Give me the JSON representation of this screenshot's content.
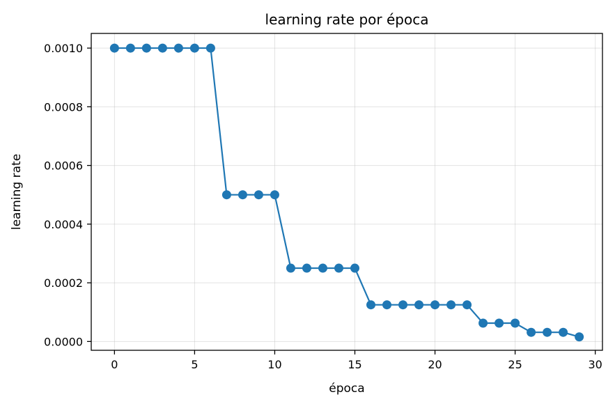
{
  "chart_data": {
    "type": "line",
    "title": "learning rate por época",
    "xlabel": "época",
    "ylabel": "learning rate",
    "xlim": [
      -1.45,
      30.45
    ],
    "ylim": [
      -3e-05,
      0.00105
    ],
    "xticks": [
      0,
      5,
      10,
      15,
      20,
      25,
      30
    ],
    "xtick_labels": [
      "0",
      "5",
      "10",
      "15",
      "20",
      "25",
      "30"
    ],
    "yticks": [
      0.0,
      0.0002,
      0.0004,
      0.0006,
      0.0008,
      0.001
    ],
    "ytick_labels": [
      "0.0000",
      "0.0002",
      "0.0004",
      "0.0006",
      "0.0008",
      "0.0010"
    ],
    "grid": true,
    "marker": "circle",
    "color": "#1f77b4",
    "series": [
      {
        "x": [
          0,
          1,
          2,
          3,
          4,
          5,
          6,
          7,
          8,
          9,
          10,
          11,
          12,
          13,
          14,
          15,
          16,
          17,
          18,
          19,
          20,
          21,
          22,
          23,
          24,
          25,
          26,
          27,
          28,
          29
        ],
        "values": [
          0.001,
          0.001,
          0.001,
          0.001,
          0.001,
          0.001,
          0.001,
          0.0005,
          0.0005,
          0.0005,
          0.0005,
          0.00025,
          0.00025,
          0.00025,
          0.00025,
          0.00025,
          0.000125,
          0.000125,
          0.000125,
          0.000125,
          0.000125,
          0.000125,
          0.000125,
          6.25e-05,
          6.25e-05,
          6.25e-05,
          3.125e-05,
          3.125e-05,
          3.125e-05,
          1.5625e-05
        ]
      }
    ]
  }
}
